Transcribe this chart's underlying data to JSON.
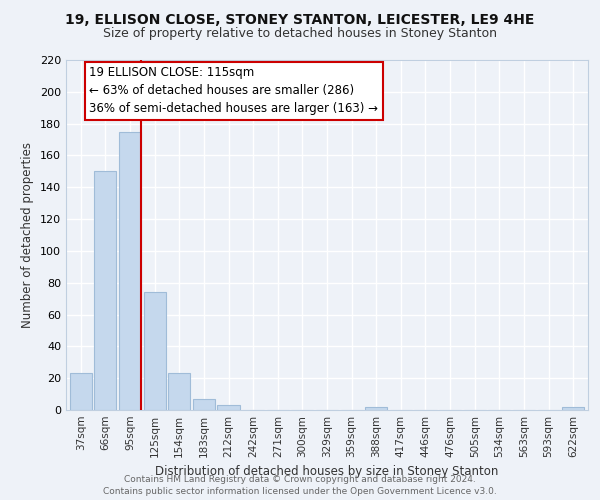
{
  "title": "19, ELLISON CLOSE, STONEY STANTON, LEICESTER, LE9 4HE",
  "subtitle": "Size of property relative to detached houses in Stoney Stanton",
  "xlabel": "Distribution of detached houses by size in Stoney Stanton",
  "ylabel": "Number of detached properties",
  "bar_labels": [
    "37sqm",
    "66sqm",
    "95sqm",
    "125sqm",
    "154sqm",
    "183sqm",
    "212sqm",
    "242sqm",
    "271sqm",
    "300sqm",
    "329sqm",
    "359sqm",
    "388sqm",
    "417sqm",
    "446sqm",
    "476sqm",
    "505sqm",
    "534sqm",
    "563sqm",
    "593sqm",
    "622sqm"
  ],
  "bar_values": [
    23,
    150,
    175,
    74,
    23,
    7,
    3,
    0,
    0,
    0,
    0,
    0,
    2,
    0,
    0,
    0,
    0,
    0,
    0,
    0,
    2
  ],
  "bar_color": "#c5d8ed",
  "bar_edge_color": "#a0bcd8",
  "vline_color": "#cc0000",
  "ann_line1": "19 ELLISON CLOSE: 115sqm",
  "ann_line2": "← 63% of detached houses are smaller (286)",
  "ann_line3": "36% of semi-detached houses are larger (163) →",
  "box_edge_color": "#cc0000",
  "ylim": [
    0,
    220
  ],
  "yticks": [
    0,
    20,
    40,
    60,
    80,
    100,
    120,
    140,
    160,
    180,
    200,
    220
  ],
  "footer_line1": "Contains HM Land Registry data © Crown copyright and database right 2024.",
  "footer_line2": "Contains public sector information licensed under the Open Government Licence v3.0.",
  "bg_color": "#eef2f8",
  "grid_color": "#ffffff",
  "title_fontsize": 10,
  "subtitle_fontsize": 9,
  "axis_label_fontsize": 8.5,
  "tick_fontsize": 7.5,
  "ann_fontsize": 8.5,
  "footer_fontsize": 6.5
}
